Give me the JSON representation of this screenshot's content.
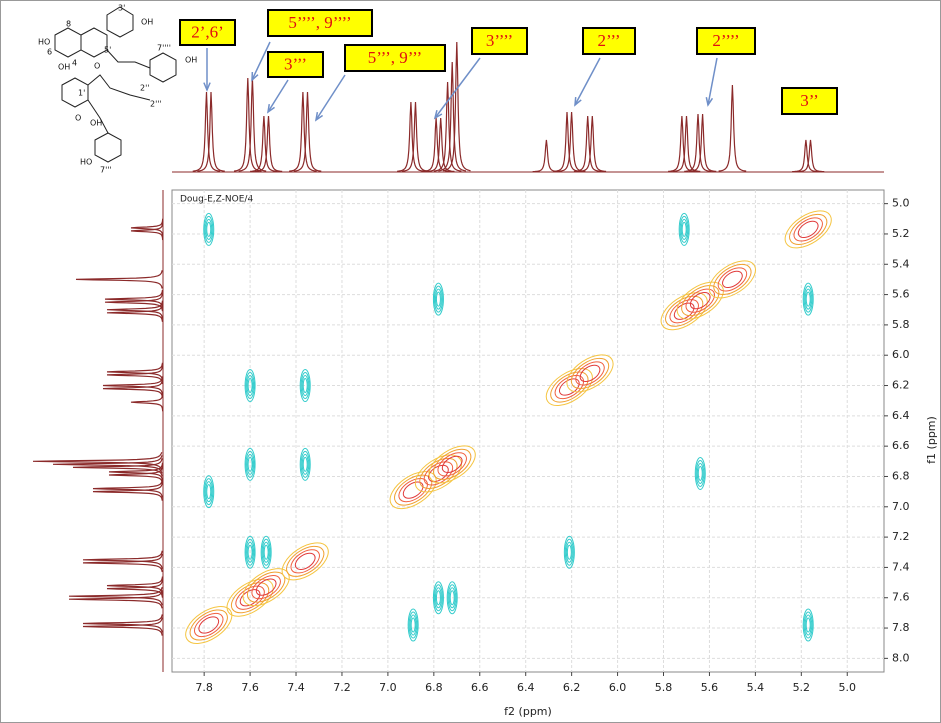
{
  "chart_data": {
    "type": "contour",
    "title": "Doug-E,Z-NOE/4",
    "x_label": "f2 (ppm)",
    "y_label": "f1 (ppm)",
    "xlim": [
      7.94,
      4.84
    ],
    "ylim": [
      4.91,
      8.09
    ],
    "xticks": [
      7.8,
      7.6,
      7.4,
      7.2,
      {
        "value": 7,
        "label": "7.0"
      },
      6.8,
      6.6,
      6.4,
      6.2,
      {
        "value": 6,
        "label": "6.0"
      },
      5.8,
      5.6,
      5.4,
      5.2,
      {
        "value": 5,
        "label": "5.0"
      }
    ],
    "yticks": [
      {
        "value": 5,
        "label": "5.0"
      },
      5.2,
      5.4,
      5.6,
      5.8,
      {
        "value": 6,
        "label": "6.0"
      },
      6.2,
      6.4,
      6.6,
      6.8,
      {
        "value": 7,
        "label": "7.0"
      },
      7.2,
      7.4,
      7.6,
      7.8,
      {
        "value": 8,
        "label": "8.0"
      }
    ],
    "grid": true,
    "series": [
      {
        "color": "#e03a3a",
        "x": [
          7.78,
          7.6,
          7.53,
          7.36,
          6.89,
          6.78,
          6.72,
          6.21,
          6.12,
          5.71,
          5.64,
          5.5,
          5.17
        ],
        "y": [
          7.78,
          7.6,
          7.53,
          7.36,
          6.89,
          6.78,
          6.72,
          6.21,
          6.12,
          5.71,
          5.64,
          5.5,
          5.17
        ]
      },
      {
        "color": "#33cccc",
        "x": [
          7.78,
          6.78,
          5.71,
          5.17,
          7.6,
          7.36,
          7.78,
          7.6,
          7.36,
          5.64,
          6.21,
          6.78,
          6.72,
          6.89,
          5.17,
          7.53,
          7.6
        ],
        "y": [
          5.17,
          5.63,
          5.17,
          5.63,
          6.2,
          6.2,
          6.9,
          6.72,
          6.72,
          6.78,
          7.3,
          7.6,
          7.6,
          7.78,
          7.78,
          7.3,
          7.3
        ]
      }
    ],
    "projection": {
      "color": "#8b2a2a",
      "x": [
        7.79,
        7.77,
        7.61,
        7.59,
        7.54,
        7.52,
        7.37,
        7.35,
        6.9,
        6.88,
        6.79,
        6.77,
        6.74,
        6.72,
        6.7,
        6.31,
        6.22,
        6.2,
        6.13,
        6.11,
        5.72,
        5.7,
        5.65,
        5.63,
        5.5,
        5.18,
        5.16
      ],
      "intensity": [
        80,
        80,
        94,
        94,
        56,
        56,
        80,
        80,
        70,
        70,
        54,
        54,
        90,
        110,
        130,
        32,
        60,
        60,
        56,
        56,
        56,
        56,
        58,
        58,
        87,
        32,
        32
      ]
    },
    "annotations": [
      "2’,6’",
      "5’’’’, 9’’’’",
      "3’’’",
      "5’’’, 9’’’",
      "3’’’’",
      "2’’’",
      "2’’’’",
      "3’’"
    ],
    "structure_labels": [
      "3'",
      "OH",
      "8",
      "HO",
      "6",
      "5'",
      "OH",
      "7''''",
      "OH",
      "4",
      "2''",
      "1'",
      "OH",
      "2'''",
      "HO",
      "7'''",
      "O",
      "O"
    ]
  }
}
